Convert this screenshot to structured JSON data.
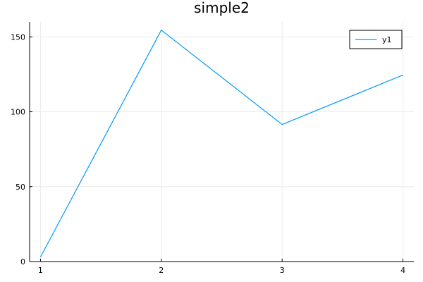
{
  "chart_data": {
    "type": "line",
    "title": "simple2",
    "xlabel": "",
    "ylabel": "",
    "x": [
      1,
      2,
      3,
      4
    ],
    "series": [
      {
        "name": "y1",
        "values": [
          3,
          154.5,
          91.5,
          124.5
        ],
        "color": "#009af9"
      }
    ],
    "xlim": [
      0.91,
      4.09
    ],
    "ylim": [
      0,
      160
    ],
    "xticks": [
      1,
      2,
      3,
      4
    ],
    "yticks": [
      0,
      50,
      100,
      150
    ],
    "xtick_labels": [
      "1",
      "2",
      "3",
      "4"
    ],
    "ytick_labels": [
      "0",
      "50",
      "100",
      "150"
    ],
    "grid": true,
    "legend_position": "top-right",
    "axis_color": "#000000",
    "grid_color": "#ebebeb"
  }
}
